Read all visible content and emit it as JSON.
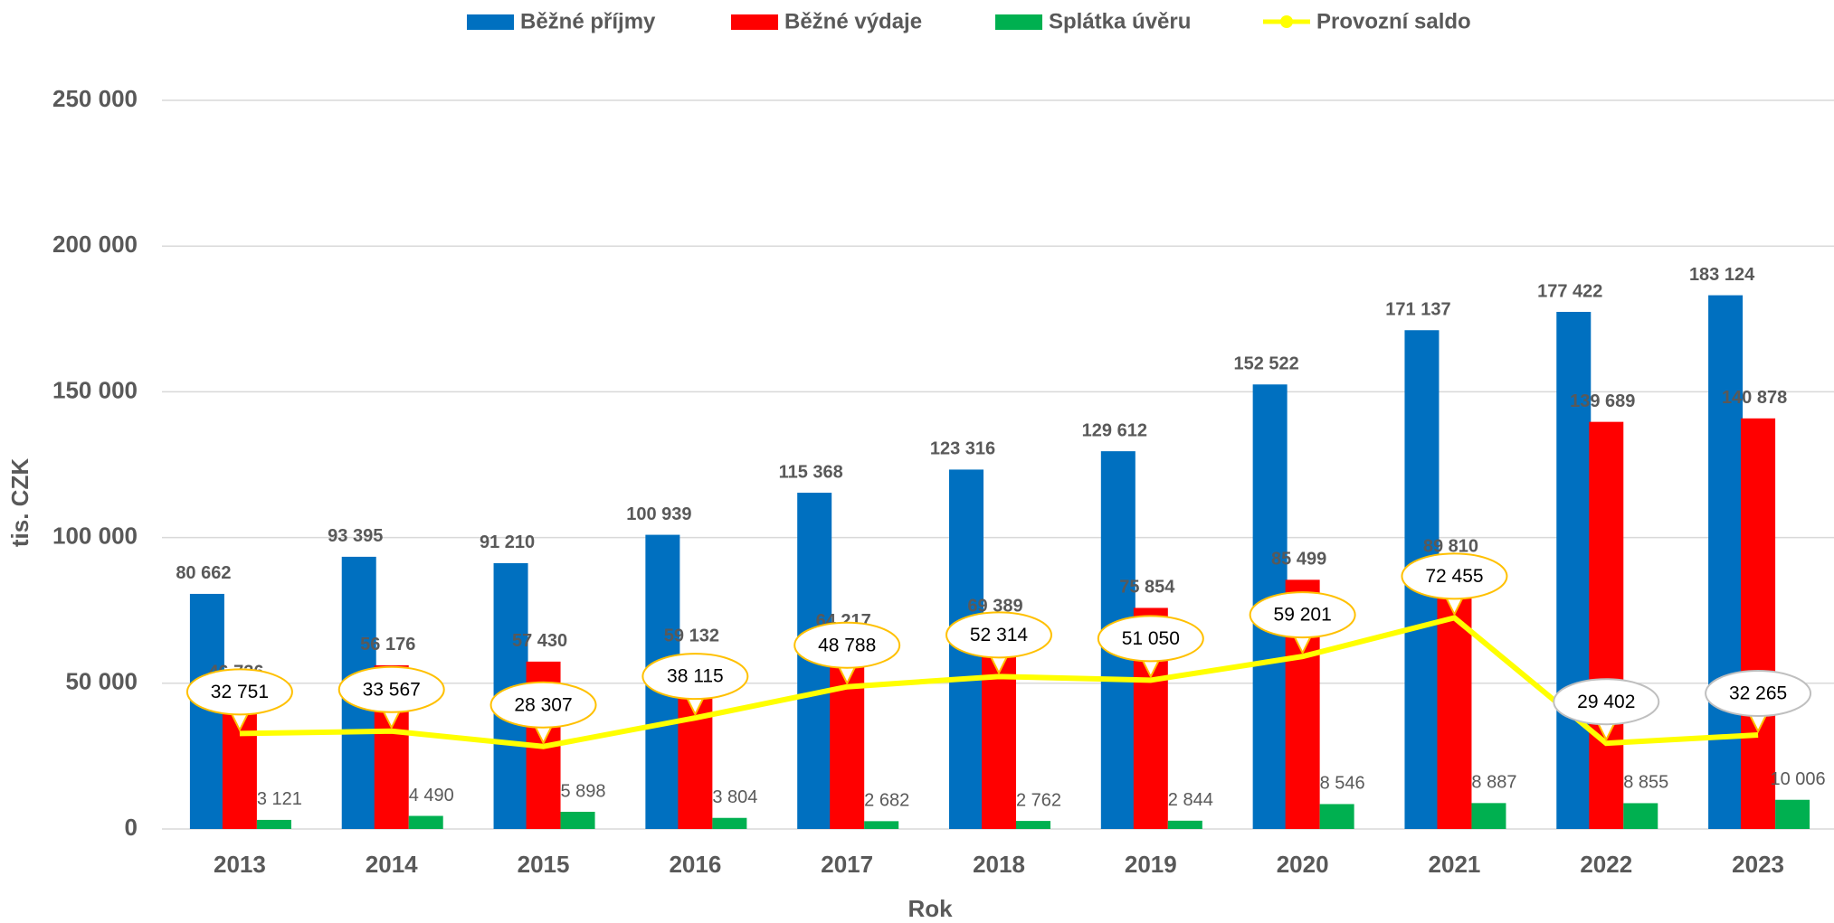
{
  "chart_data": {
    "type": "bar",
    "categories": [
      "2013",
      "2014",
      "2015",
      "2016",
      "2017",
      "2018",
      "2019",
      "2020",
      "2021",
      "2022",
      "2023"
    ],
    "x_label": "Rok",
    "y_label": "tis. CZK",
    "ylim": [
      0,
      250000
    ],
    "yticks": [
      0,
      {
        "value": 50000,
        "label": "50 000"
      },
      {
        "value": 100000,
        "label": "100 000"
      },
      {
        "value": 150000,
        "label": "150 000"
      },
      {
        "value": 200000,
        "label": "200 000"
      },
      {
        "value": 250000,
        "label": "250 000"
      }
    ],
    "grid": true,
    "legend": "top",
    "series": [
      {
        "name": "Běžné příjmy",
        "color": "#0070c0",
        "type": "bar",
        "values": [
          80662,
          93395,
          91210,
          100939,
          115368,
          123316,
          129612,
          152522,
          171137,
          177422,
          183124
        ],
        "value_labels": [
          "80 662",
          "93 395",
          "91 210",
          "100 939",
          "115 368",
          "123 316",
          "129 612",
          "152 522",
          "171 137",
          "177 422",
          "183 124"
        ]
      },
      {
        "name": "Běžné výdaje",
        "color": "#ff0000",
        "type": "bar",
        "values": [
          46736,
          56176,
          57430,
          59132,
          64217,
          69389,
          75854,
          85499,
          89810,
          139689,
          140878
        ],
        "value_labels": [
          "46 736",
          "56 176",
          "57 430",
          "59 132",
          "64 217",
          "69 389",
          "75 854",
          "85 499",
          "89 810",
          "139 689",
          "140 878"
        ]
      },
      {
        "name": "Splátka úvěru",
        "color": "#00b050",
        "type": "bar",
        "values": [
          3121,
          4490,
          5898,
          3804,
          2682,
          2762,
          2844,
          8546,
          8887,
          8855,
          10006
        ],
        "value_labels": [
          "3 121",
          "4 490",
          "5 898",
          "3 804",
          "2 682",
          "2 762",
          "2 844",
          "8 546",
          "8 887",
          "8 855",
          "10 006"
        ]
      },
      {
        "name": "Provozní saldo",
        "color": "#ffff00",
        "type": "line",
        "values": [
          32751,
          33567,
          28307,
          38115,
          48788,
          52314,
          51050,
          59201,
          72455,
          29402,
          32265
        ],
        "value_labels": [
          "32 751",
          "33 567",
          "28 307",
          "38 115",
          "48 788",
          "52 314",
          "51 050",
          "59 201",
          "72 455",
          "29 402",
          "32 265"
        ]
      }
    ]
  }
}
